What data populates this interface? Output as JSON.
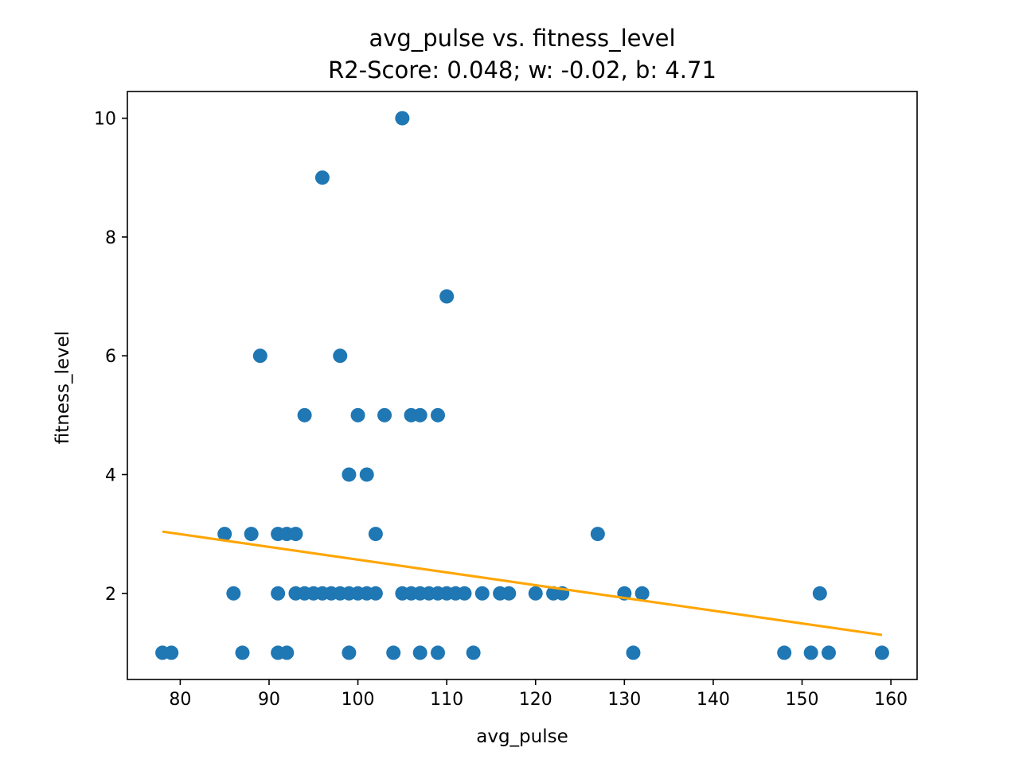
{
  "chart_data": {
    "type": "scatter",
    "title": "avg_pulse vs. fitness_level",
    "subtitle": "R2-Score: 0.048; w: -0.02, b: 4.71",
    "xlabel": "avg_pulse",
    "ylabel": "fitness_level",
    "xlim": [
      74.05,
      162.95
    ],
    "ylim": [
      0.55,
      10.45
    ],
    "x_ticks": [
      "80",
      "90",
      "100",
      "110",
      "120",
      "130",
      "140",
      "150",
      "160"
    ],
    "y_ticks": [
      "2",
      "4",
      "6",
      "8",
      "10"
    ],
    "grid": false,
    "colors": {
      "points": "#1f77b4",
      "fit_line": "#ffa500",
      "axes": "#000000",
      "background": "#ffffff"
    },
    "series": [
      {
        "type": "scatter",
        "points": [
          [
            105,
            10
          ],
          [
            96,
            9
          ],
          [
            110,
            7
          ],
          [
            89,
            6
          ],
          [
            98,
            6
          ],
          [
            94,
            5
          ],
          [
            100,
            5
          ],
          [
            103,
            5
          ],
          [
            106,
            5
          ],
          [
            107,
            5
          ],
          [
            109,
            5
          ],
          [
            99,
            4
          ],
          [
            101,
            4
          ],
          [
            85,
            3
          ],
          [
            88,
            3
          ],
          [
            91,
            3
          ],
          [
            92,
            3
          ],
          [
            93,
            3
          ],
          [
            102,
            3
          ],
          [
            127,
            3
          ],
          [
            86,
            2
          ],
          [
            91,
            2
          ],
          [
            93,
            2
          ],
          [
            94,
            2
          ],
          [
            95,
            2
          ],
          [
            96,
            2
          ],
          [
            97,
            2
          ],
          [
            98,
            2
          ],
          [
            99,
            2
          ],
          [
            100,
            2
          ],
          [
            101,
            2
          ],
          [
            102,
            2
          ],
          [
            105,
            2
          ],
          [
            106,
            2
          ],
          [
            107,
            2
          ],
          [
            108,
            2
          ],
          [
            109,
            2
          ],
          [
            110,
            2
          ],
          [
            111,
            2
          ],
          [
            112,
            2
          ],
          [
            114,
            2
          ],
          [
            116,
            2
          ],
          [
            117,
            2
          ],
          [
            120,
            2
          ],
          [
            122,
            2
          ],
          [
            123,
            2
          ],
          [
            130,
            2
          ],
          [
            132,
            2
          ],
          [
            152,
            2
          ],
          [
            78,
            1
          ],
          [
            79,
            1
          ],
          [
            87,
            1
          ],
          [
            91,
            1
          ],
          [
            92,
            1
          ],
          [
            99,
            1
          ],
          [
            104,
            1
          ],
          [
            107,
            1
          ],
          [
            109,
            1
          ],
          [
            113,
            1
          ],
          [
            131,
            1
          ],
          [
            148,
            1
          ],
          [
            151,
            1
          ],
          [
            153,
            1
          ],
          [
            159,
            1
          ]
        ]
      },
      {
        "type": "line",
        "points": [
          [
            78,
            3.04
          ],
          [
            159,
            1.3
          ]
        ]
      }
    ]
  }
}
